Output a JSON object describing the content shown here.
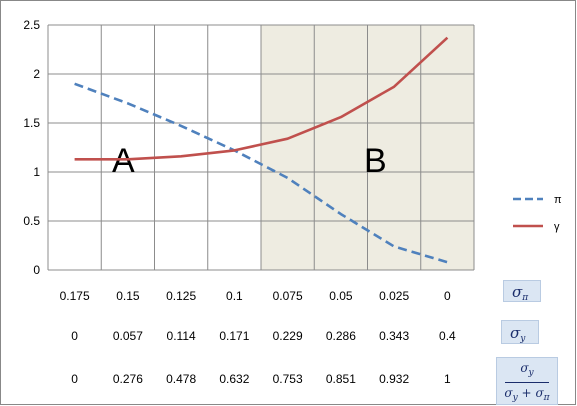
{
  "chart_data": {
    "type": "line",
    "x": [
      "0.175",
      "0.15",
      "0.125",
      "0.1",
      "0.075",
      "0.05",
      "0.025",
      "0"
    ],
    "ylim": [
      0,
      2.5
    ],
    "yticks": [
      "0",
      "0.5",
      "1",
      "1.5",
      "2",
      "2.5"
    ],
    "grid": true,
    "legend_position": "right",
    "series": [
      {
        "name": "π",
        "style": "dashed",
        "color": "#4f81bd",
        "values": [
          1.9,
          1.7,
          1.47,
          1.22,
          0.94,
          0.57,
          0.24,
          0.08
        ]
      },
      {
        "name": "γ",
        "style": "solid",
        "color": "#c0504d",
        "values": [
          1.13,
          1.13,
          1.16,
          1.22,
          1.34,
          1.56,
          1.87,
          2.37
        ]
      }
    ],
    "regions": [
      {
        "label": "A",
        "shaded": false,
        "color": "#ffffff"
      },
      {
        "label": "B",
        "shaded": true,
        "color": "#eeece1"
      }
    ]
  },
  "table": {
    "rows": [
      {
        "label": "σπ",
        "values": [
          "0.175",
          "0.15",
          "0.125",
          "0.1",
          "0.075",
          "0.05",
          "0.025",
          "0"
        ]
      },
      {
        "label": "σγ",
        "values": [
          "0",
          "0.057",
          "0.114",
          "0.171",
          "0.229",
          "0.286",
          "0.343",
          "0.4"
        ]
      },
      {
        "label": "σγ/(σγ+σπ)",
        "values": [
          "0",
          "0.276",
          "0.478",
          "0.632",
          "0.753",
          "0.851",
          "0.932",
          "1"
        ]
      }
    ]
  },
  "sigma": {
    "symbol": "σ",
    "pi_sub": "π",
    "gamma_sub": "y",
    "plus": "+"
  }
}
